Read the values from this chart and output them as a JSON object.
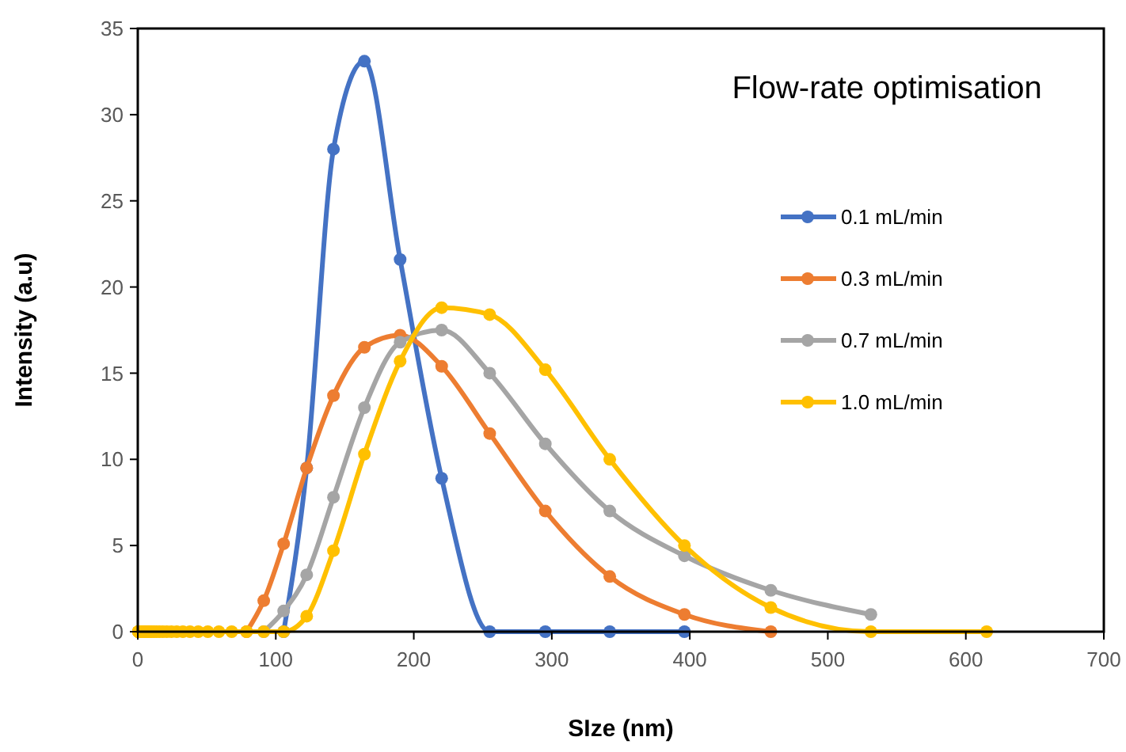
{
  "chart_data": {
    "type": "line",
    "title": "Flow-rate optimisation",
    "xlabel": "SIze (nm)",
    "ylabel": "Intensity (a.u)",
    "x": [
      0.4,
      0.4632,
      0.5365,
      0.6213,
      0.7195,
      0.8332,
      0.9649,
      1.117,
      1.294,
      1.499,
      1.736,
      2.01,
      2.328,
      2.696,
      3.122,
      3.615,
      4.187,
      4.849,
      5.615,
      6.503,
      7.531,
      8.721,
      10.1,
      11.7,
      13.54,
      15.69,
      18.17,
      21.04,
      24.36,
      28.21,
      32.67,
      37.84,
      43.82,
      50.75,
      58.77,
      68.06,
      78.82,
      91.28,
      105.7,
      122.4,
      141.8,
      164.2,
      190.1,
      220.2,
      255,
      295.3,
      342,
      396.1,
      458.7,
      531.2,
      615.1
    ],
    "series": [
      {
        "name": "0.1 mL/min",
        "color": "#4472c4",
        "values": [
          null,
          null,
          null,
          null,
          null,
          null,
          null,
          null,
          null,
          null,
          null,
          null,
          null,
          null,
          null,
          null,
          null,
          null,
          null,
          null,
          null,
          null,
          null,
          null,
          null,
          null,
          null,
          null,
          null,
          null,
          null,
          null,
          null,
          null,
          null,
          null,
          null,
          null,
          0,
          9.5,
          28,
          33.1,
          21.6,
          8.9,
          0,
          0,
          0,
          0,
          null,
          null,
          null
        ]
      },
      {
        "name": "0.3 mL/min",
        "color": "#ed7d31",
        "values": [
          null,
          null,
          null,
          null,
          null,
          null,
          null,
          null,
          null,
          null,
          null,
          null,
          null,
          null,
          null,
          null,
          null,
          null,
          null,
          null,
          null,
          null,
          null,
          null,
          null,
          null,
          null,
          null,
          null,
          null,
          null,
          null,
          null,
          null,
          null,
          null,
          0,
          1.8,
          5.1,
          9.5,
          13.7,
          16.5,
          17.2,
          15.4,
          11.5,
          7,
          3.2,
          1,
          0,
          null,
          null
        ]
      },
      {
        "name": "0.7 mL/min",
        "color": "#a5a5a5",
        "values": [
          null,
          null,
          null,
          null,
          null,
          null,
          null,
          null,
          null,
          null,
          null,
          null,
          null,
          null,
          null,
          null,
          null,
          null,
          null,
          null,
          null,
          null,
          null,
          null,
          null,
          null,
          null,
          null,
          null,
          null,
          null,
          null,
          null,
          null,
          null,
          null,
          null,
          0,
          1.2,
          3.3,
          7.8,
          13,
          16.8,
          17.5,
          15,
          10.9,
          7,
          4.4,
          2.4,
          1,
          null
        ]
      },
      {
        "name": "1.0 mL/min",
        "color": "#ffc000",
        "values": [
          0,
          0,
          0,
          0,
          0,
          0,
          0,
          0,
          0,
          0,
          0,
          0,
          0,
          0,
          0,
          0,
          0,
          0,
          0,
          0,
          0,
          0,
          0,
          0,
          0,
          0,
          0,
          0,
          0,
          0,
          0,
          0,
          0,
          0,
          0,
          0,
          0,
          0,
          0,
          0.9,
          4.7,
          10.3,
          15.7,
          18.8,
          18.4,
          15.2,
          10,
          5,
          1.4,
          0,
          0
        ]
      }
    ],
    "xlim": [
      0,
      700
    ],
    "xticks": [
      0,
      100,
      200,
      300,
      400,
      500,
      600,
      700
    ],
    "ylim": [
      0,
      35
    ],
    "yticks": [
      0,
      5,
      10,
      15,
      20,
      25,
      30,
      35
    ],
    "grid": false,
    "legend": "right",
    "marker": "circle",
    "line_style": "solid"
  }
}
